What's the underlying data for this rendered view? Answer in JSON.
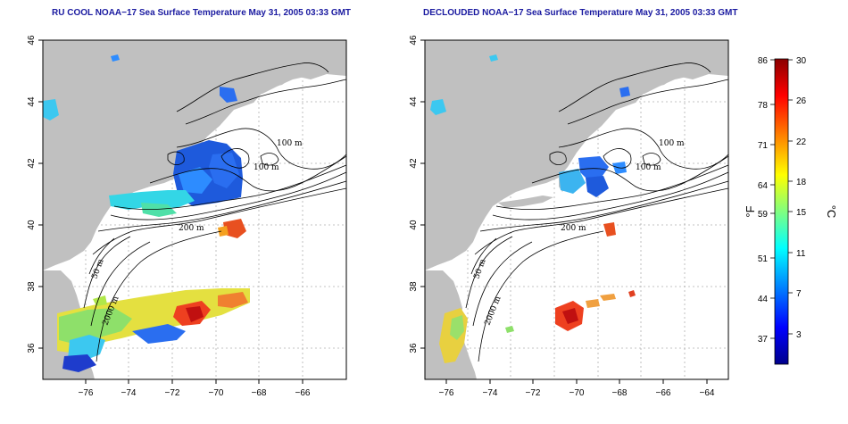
{
  "panels": [
    {
      "title": "RU COOL NOAA−17 Sea Surface Temperature May 31, 2005 03:33 GMT",
      "variant": "ru-cool",
      "contour_labels": [
        "100 m",
        "100 m",
        "200 m",
        "50 m",
        "2000 m"
      ]
    },
    {
      "title": "DECLOUDED NOAA−17 Sea Surface Temperature May 31, 2005 03:33 GMT",
      "variant": "declouded",
      "contour_labels": [
        "100 m",
        "100 m",
        "200 m",
        "50 m",
        "2000 m"
      ]
    }
  ],
  "axes": {
    "x_ticks": [
      "−76",
      "−74",
      "−72",
      "−70",
      "−68",
      "−66",
      "−64"
    ],
    "y_ticks": [
      "36",
      "38",
      "40",
      "42",
      "44",
      "46"
    ]
  },
  "colorbar": {
    "fahrenheit_ticks": [
      "86",
      "78",
      "71",
      "64",
      "59",
      "51",
      "44",
      "37"
    ],
    "celsius_ticks": [
      "30",
      "26",
      "22",
      "18",
      "15",
      "11",
      "7",
      "3"
    ],
    "fahrenheit_unit": "°F",
    "celsius_unit": "°C",
    "colors": [
      "#00008b",
      "#0000ff",
      "#0080ff",
      "#00ffff",
      "#80ff80",
      "#ffff00",
      "#ff8000",
      "#ff0000",
      "#8b0000"
    ]
  },
  "colors": {
    "land": "#c0c0c0",
    "ocean": "#ffffff",
    "title": "#1a1aa0",
    "grid": "#b0b0b0"
  }
}
